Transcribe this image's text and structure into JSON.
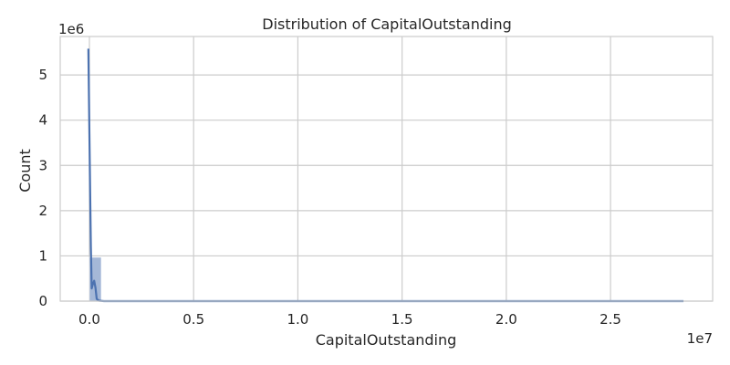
{
  "chart_data": {
    "type": "bar",
    "title": "Distribution of CapitalOutstanding",
    "xlabel": "CapitalOutstanding",
    "ylabel": "Count",
    "x_offset_label": "1e7",
    "y_offset_label": "1e6",
    "xlim": [
      -1400000,
      29900000
    ],
    "ylim": [
      0,
      5.85
    ],
    "x_ticks": [
      0,
      0.5,
      1.0,
      1.5,
      2.0,
      2.5
    ],
    "x_tick_labels": [
      "0.0",
      "0.5",
      "1.0",
      "1.5",
      "2.0",
      "2.5"
    ],
    "y_ticks": [
      0,
      1,
      2,
      3,
      4,
      5
    ],
    "y_tick_labels": [
      "0",
      "1",
      "2",
      "3",
      "4",
      "5"
    ],
    "bin_width": 570000,
    "bins": [
      {
        "x_start": 0,
        "count": 0.97
      },
      {
        "x_start": 570000,
        "count": 0.006
      },
      {
        "x_start": 1140000,
        "count": 0.002
      },
      {
        "x_start": 1710000,
        "count": 0.001
      }
    ],
    "kde": {
      "series_color": "#4c72b0",
      "points": [
        {
          "x": -50000,
          "y": 5.58
        },
        {
          "x": 0,
          "y": 3.7
        },
        {
          "x": 70000,
          "y": 1.2
        },
        {
          "x": 110000,
          "y": 0.28
        },
        {
          "x": 170000,
          "y": 0.38
        },
        {
          "x": 230000,
          "y": 0.45
        },
        {
          "x": 290000,
          "y": 0.3
        },
        {
          "x": 350000,
          "y": 0.05
        },
        {
          "x": 450000,
          "y": 0.01
        },
        {
          "x": 700000,
          "y": 0.0
        },
        {
          "x": 28500000,
          "y": 0.0
        }
      ]
    },
    "grid": true,
    "style": "seaborn-whitegrid"
  }
}
